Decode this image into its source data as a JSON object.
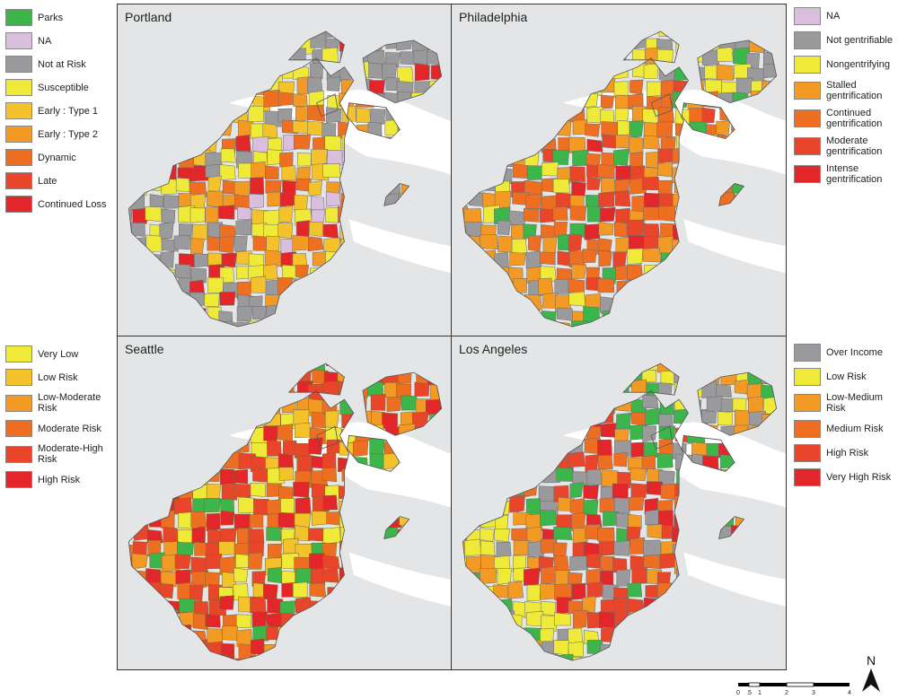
{
  "legends": {
    "left_top": [
      {
        "label": "Parks",
        "color": "#3cb54a"
      },
      {
        "label": "NA",
        "color": "#d9bfdd"
      },
      {
        "label": "Not at Risk",
        "color": "#9a9a9c"
      },
      {
        "label": "Susceptible",
        "color": "#eeea37"
      },
      {
        "label": "Early : Type 1",
        "color": "#f4c22a"
      },
      {
        "label": "Early : Type 2",
        "color": "#f39a24"
      },
      {
        "label": "Dynamic",
        "color": "#ef6f22"
      },
      {
        "label": "Late",
        "color": "#e8452a"
      },
      {
        "label": "Continued Loss",
        "color": "#e3262a"
      }
    ],
    "left_bottom": [
      {
        "label": "Very Low",
        "color": "#eeea37"
      },
      {
        "label": "Low Risk",
        "color": "#f4c22a"
      },
      {
        "label": "Low-Moderate Risk",
        "color": "#f39a24"
      },
      {
        "label": "Moderate Risk",
        "color": "#ef6f22"
      },
      {
        "label": "Moderate-High Risk",
        "color": "#e8452a"
      },
      {
        "label": "High Risk",
        "color": "#e3262a"
      }
    ],
    "right_top": [
      {
        "label": "NA",
        "color": "#d9bfdd"
      },
      {
        "label": "Not gentrifiable",
        "color": "#9a9a9c"
      },
      {
        "label": "Nongentrifying",
        "color": "#eeea37"
      },
      {
        "label": "Stalled gentrification",
        "color": "#f39a24"
      },
      {
        "label": "Continued gentrification",
        "color": "#ef6f22"
      },
      {
        "label": "Moderate gentrification",
        "color": "#e8452a"
      },
      {
        "label": "Intense gentrification",
        "color": "#e3262a"
      }
    ],
    "right_bottom": [
      {
        "label": "Over Income",
        "color": "#9a9a9c"
      },
      {
        "label": "Low Risk",
        "color": "#eeea37"
      },
      {
        "label": "Low-Medium Risk",
        "color": "#f39a24"
      },
      {
        "label": "Medium Risk",
        "color": "#ef6f22"
      },
      {
        "label": "High Risk",
        "color": "#e8452a"
      },
      {
        "label": "Very High Risk",
        "color": "#e3262a"
      }
    ]
  },
  "panels": [
    {
      "title": "Portland",
      "palette": [
        "#9a9a9c",
        "#9a9a9c",
        "#9a9a9c",
        "#eeea37",
        "#f4c22a",
        "#f39a24",
        "#ef6f22",
        "#d9bfdd",
        "#e3262a",
        "#3cb54a"
      ]
    },
    {
      "title": "Philadelphia",
      "palette": [
        "#9a9a9c",
        "#9a9a9c",
        "#eeea37",
        "#f39a24",
        "#ef6f22",
        "#ef6f22",
        "#e8452a",
        "#e3262a",
        "#3cb54a",
        "#9a9a9c"
      ]
    },
    {
      "title": "Seattle",
      "palette": [
        "#f39a24",
        "#ef6f22",
        "#e8452a",
        "#e3262a",
        "#f4c22a",
        "#eeea37",
        "#ef6f22",
        "#e8452a",
        "#3cb54a",
        "#f39a24"
      ]
    },
    {
      "title": "Los Angeles",
      "palette": [
        "#eeea37",
        "#eeea37",
        "#9a9a9c",
        "#f39a24",
        "#ef6f22",
        "#e8452a",
        "#e3262a",
        "#9a9a9c",
        "#3cb54a",
        "#eeea37"
      ]
    }
  ],
  "scale": {
    "ticks": [
      "0",
      ".5",
      "1",
      "2",
      "3",
      "4"
    ]
  },
  "north": {
    "label": "N"
  },
  "colors": {
    "land": "#e3e5e6",
    "water": "#ffffff",
    "border": "#333333"
  }
}
